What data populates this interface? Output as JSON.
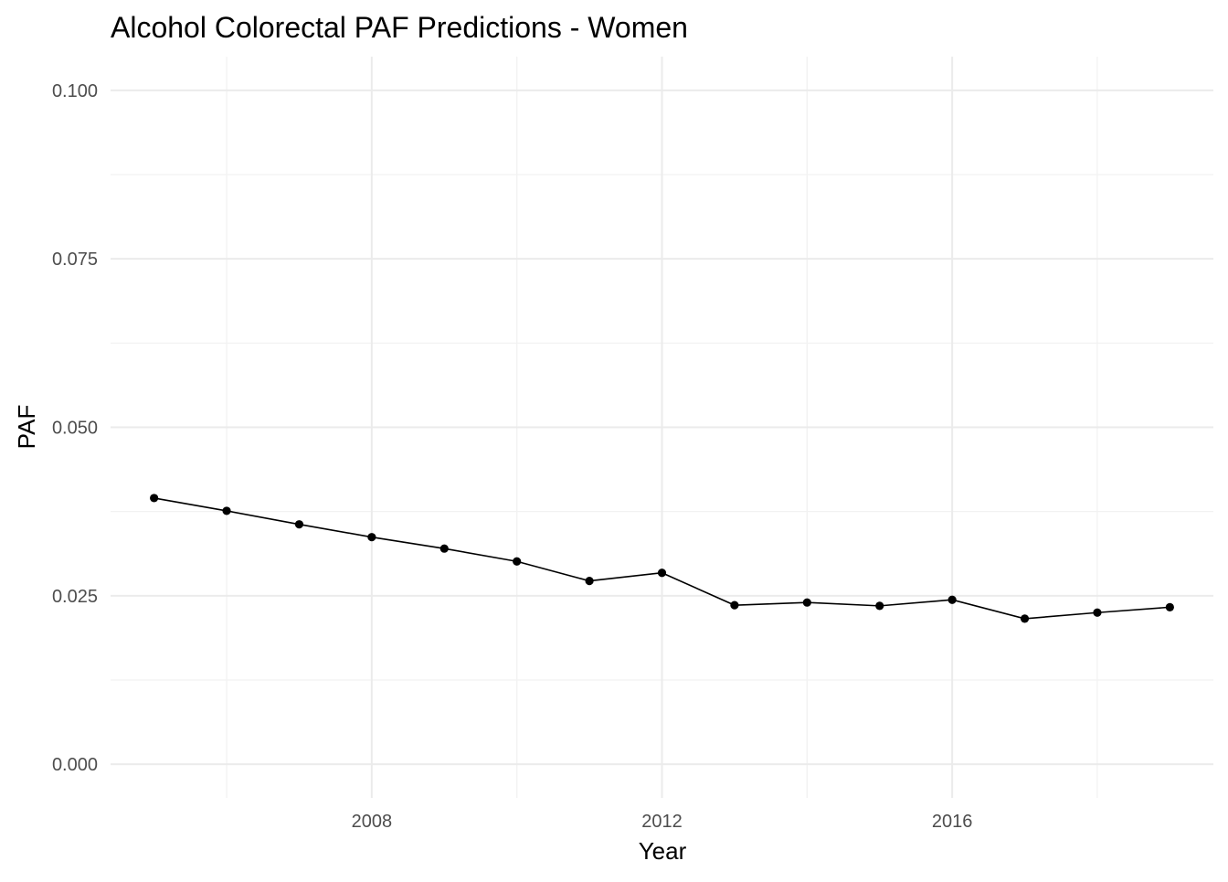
{
  "chart_data": {
    "type": "line",
    "title": "Alcohol Colorectal PAF Predictions - Women",
    "xlabel": "Year",
    "ylabel": "PAF",
    "x_ticks": [
      2008,
      2012,
      2016
    ],
    "x_tick_labels": [
      "2008",
      "2012",
      "2016"
    ],
    "y_ticks": [
      0.0,
      0.025,
      0.05,
      0.075,
      0.1
    ],
    "y_tick_labels": [
      "0.000",
      "0.025",
      "0.050",
      "0.075",
      "0.100"
    ],
    "xlim": [
      2004.4,
      2019.6
    ],
    "ylim": [
      -0.005,
      0.105
    ],
    "grid": true,
    "legend": "none",
    "colors": {
      "line": "#000000",
      "point": "#000000",
      "grid_major": "#ebebeb",
      "grid_minor": "#f2f2f2",
      "tick_text": "#4d4d4d"
    },
    "series": [
      {
        "x": [
          2005,
          2006,
          2007,
          2008,
          2009,
          2010,
          2011,
          2012,
          2013,
          2014,
          2015,
          2016,
          2017,
          2018,
          2019
        ],
        "values": [
          0.0395,
          0.0376,
          0.0356,
          0.0337,
          0.032,
          0.0301,
          0.0272,
          0.0284,
          0.0236,
          0.024,
          0.0235,
          0.0244,
          0.0216,
          0.0225,
          0.0233
        ]
      }
    ]
  }
}
